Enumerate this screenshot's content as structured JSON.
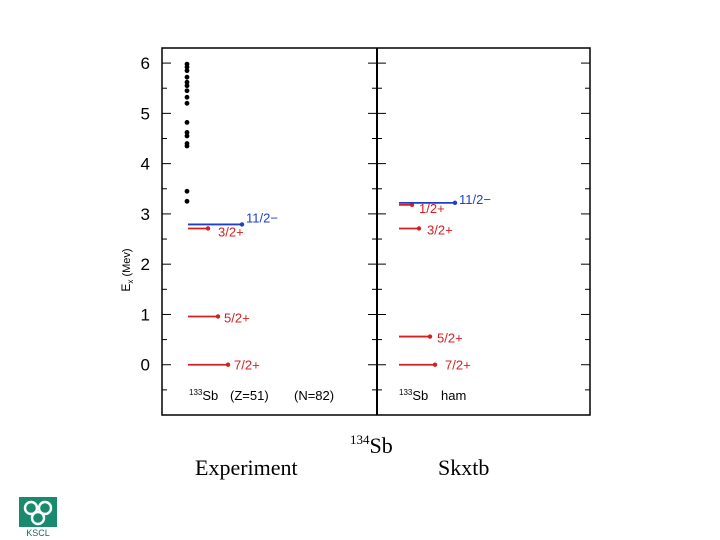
{
  "chart_data": {
    "type": "level-scheme",
    "ylabel": "E",
    "ylabel_sub": "x",
    "ylabel_unit": "(Mev)",
    "ylim": [
      -1.0,
      6.3
    ],
    "yticks": [
      "0",
      "1",
      "2",
      "3",
      "4",
      "5",
      "6"
    ],
    "panels": [
      {
        "name": "experiment",
        "nucleus_mass": "133",
        "nucleus_symbol": "Sb",
        "extra_labels": [
          "(Z=51)",
          "(N=82)"
        ],
        "levels": [
          {
            "energy": 0.0,
            "label": "7/2+",
            "color": "#d42020"
          },
          {
            "energy": 0.96,
            "label": "5/2+",
            "color": "#d42020"
          },
          {
            "energy": 2.71,
            "label": "3/2+",
            "color": "#d42020"
          },
          {
            "energy": 2.79,
            "label": "11/2−",
            "color": "#1d3fcc"
          }
        ],
        "other_states": [
          3.25,
          3.45,
          4.35,
          4.4,
          4.55,
          4.62,
          4.82,
          5.2,
          5.32,
          5.45,
          5.55,
          5.62,
          5.72,
          5.85,
          5.92,
          5.98
        ]
      },
      {
        "name": "skxtb",
        "nucleus_mass": "133",
        "nucleus_symbol": "Sb",
        "extra_labels": [
          "ham"
        ],
        "levels": [
          {
            "energy": 0.0,
            "label": "7/2+",
            "color": "#d42020"
          },
          {
            "energy": 0.56,
            "label": "5/2+",
            "color": "#d42020"
          },
          {
            "energy": 2.71,
            "label": "3/2+",
            "color": "#d42020"
          },
          {
            "energy": 3.18,
            "label": "1/2+",
            "color": "#d42020"
          },
          {
            "energy": 3.22,
            "label": "11/2−",
            "color": "#1d3fcc"
          }
        ]
      }
    ]
  },
  "captions": {
    "left": "Experiment",
    "middle_mass": "134",
    "middle_symbol": "Sb",
    "right": "Skxtb"
  },
  "logo_text": "KSCL"
}
